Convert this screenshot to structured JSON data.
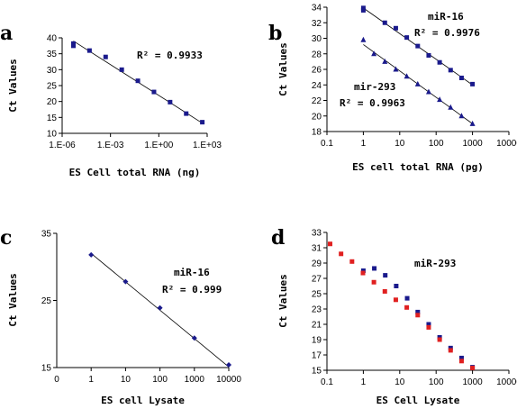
{
  "chart_data": [
    {
      "panel": "a",
      "type": "scatter",
      "xscale": "log",
      "xlim": [
        1e-06,
        1000.0
      ],
      "ylim": [
        10,
        40
      ],
      "xticks": [
        1e-06,
        0.001,
        1,
        1000
      ],
      "xtick_labels": [
        "1.E-06",
        "1.E-03",
        "1.E+00",
        "1.E+03"
      ],
      "yticks": [
        10,
        15,
        20,
        25,
        30,
        35,
        40
      ],
      "ytick_labels": [
        "10",
        "15",
        "20",
        "25",
        "30",
        "35",
        "40"
      ],
      "xlabel": "ES Cell total RNA (ng)",
      "ylabel": "Ct Values",
      "series": [
        {
          "color": "#1a1a8c",
          "marker": "square",
          "x": [
            5e-06,
            5e-06,
            5e-05,
            0.0005,
            0.005,
            0.05,
            0.5,
            5,
            50,
            500
          ],
          "y": [
            37.5,
            38.2,
            36.0,
            34.0,
            30.0,
            26.5,
            23.0,
            19.8,
            16.2,
            13.5
          ]
        }
      ],
      "fit_lines": [
        {
          "x": [
            5e-06,
            500
          ],
          "y": [
            39.0,
            13.2
          ]
        }
      ],
      "annotations": [
        {
          "text": "R² = 0.9933",
          "key": "a_r2"
        }
      ],
      "grid": false
    },
    {
      "panel": "b",
      "type": "scatter",
      "xscale": "log",
      "xlim": [
        0.1,
        10000
      ],
      "ylim": [
        18,
        34
      ],
      "xticks": [
        0.1,
        1,
        10,
        100,
        1000,
        10000
      ],
      "xtick_labels": [
        "0.1",
        "1",
        "10",
        "100",
        "1000",
        "10000"
      ],
      "yticks": [
        18,
        20,
        22,
        24,
        26,
        28,
        30,
        32,
        34
      ],
      "ytick_labels": [
        "18",
        "20",
        "22",
        "24",
        "26",
        "28",
        "30",
        "32",
        "34"
      ],
      "xlabel": "ES cell total RNA (pg)",
      "ylabel": "Ct Values",
      "series": [
        {
          "name": "miR-16",
          "color": "#1a1a8c",
          "marker": "square",
          "x": [
            1,
            1,
            3.9,
            7.8,
            15.6,
            31.25,
            62.5,
            125,
            250,
            500,
            1000
          ],
          "y": [
            33.6,
            33.9,
            32.0,
            31.3,
            30.1,
            29.0,
            27.8,
            26.9,
            25.9,
            24.9,
            24.1
          ]
        },
        {
          "name": "mir-293",
          "color": "#1a1a8c",
          "marker": "triangle",
          "x": [
            1,
            1.95,
            3.9,
            7.8,
            15.6,
            31.25,
            62.5,
            125,
            250,
            500,
            1000
          ],
          "y": [
            29.8,
            28.0,
            27.0,
            26.0,
            25.1,
            24.1,
            23.1,
            22.1,
            21.1,
            20.0,
            19.0
          ]
        }
      ],
      "fit_lines": [
        {
          "x": [
            1,
            1000
          ],
          "y": [
            33.9,
            24.0
          ]
        },
        {
          "x": [
            1,
            1000
          ],
          "y": [
            29.2,
            19.0
          ]
        }
      ],
      "annotations": [
        {
          "text": "miR-16",
          "key": "b_label1"
        },
        {
          "text": "R² = 0.9976",
          "key": "b_r2_1"
        },
        {
          "text": "mir-293",
          "key": "b_label2"
        },
        {
          "text": "R² = 0.9963",
          "key": "b_r2_2"
        }
      ],
      "grid": false
    },
    {
      "panel": "c",
      "type": "scatter",
      "xscale": "log",
      "xlim": [
        0.1,
        10000
      ],
      "ylim": [
        15,
        35
      ],
      "xticks": [
        1,
        10,
        100,
        1000,
        10000
      ],
      "xtick_labels": [
        "1",
        "10",
        "100",
        "1000",
        "10000"
      ],
      "extra_xtick_label": "0",
      "yticks": [
        15,
        25,
        35
      ],
      "ytick_labels": [
        "15",
        "25",
        "35"
      ],
      "xlabel": "ES cell Lysate",
      "ylabel": "Ct Values",
      "series": [
        {
          "color": "#1a1a8c",
          "marker": "diamond",
          "x": [
            1,
            10,
            100,
            1000,
            10000
          ],
          "y": [
            31.8,
            27.8,
            23.9,
            19.4,
            15.4
          ]
        }
      ],
      "fit_lines": [
        {
          "x": [
            1,
            10000
          ],
          "y": [
            32.0,
            15.1
          ]
        }
      ],
      "annotations": [
        {
          "text": "miR-16",
          "key": "c_label"
        },
        {
          "text": "R² = 0.999",
          "key": "c_r2"
        }
      ],
      "grid": false
    },
    {
      "panel": "d",
      "type": "scatter",
      "xscale": "log",
      "xlim": [
        0.1,
        10000
      ],
      "ylim": [
        15,
        33
      ],
      "xticks": [
        0.1,
        1,
        10,
        100,
        1000,
        10000
      ],
      "xtick_labels": [
        "0.1",
        "1",
        "10",
        "100",
        "1000",
        "10000"
      ],
      "yticks": [
        15,
        17,
        19,
        21,
        23,
        25,
        27,
        29,
        31,
        33
      ],
      "ytick_labels": [
        "15",
        "17",
        "19",
        "21",
        "23",
        "25",
        "27",
        "29",
        "31",
        "33"
      ],
      "xlabel": "ES Cell Lysate",
      "ylabel": "Ct Values",
      "series": [
        {
          "color": "#1a1a8c",
          "marker": "square",
          "x": [
            1,
            2,
            4,
            8,
            16,
            31.25,
            62.5,
            125,
            250,
            500,
            1000
          ],
          "y": [
            28.0,
            28.3,
            27.4,
            26.0,
            24.4,
            22.6,
            21.0,
            19.3,
            17.9,
            16.6,
            15.4
          ]
        },
        {
          "color": "#e02020",
          "marker": "square",
          "x": [
            0.122,
            0.244,
            0.488,
            0.977,
            1.95,
            3.9,
            7.8,
            15.6,
            31.25,
            62.5,
            125,
            250,
            500,
            1000
          ],
          "y": [
            31.5,
            30.2,
            29.2,
            27.7,
            26.5,
            25.3,
            24.2,
            23.2,
            22.2,
            20.6,
            19.0,
            17.6,
            16.2,
            15.3
          ]
        }
      ],
      "fit_lines": [],
      "annotations": [
        {
          "text": "miR-293",
          "key": "d_label"
        }
      ],
      "grid": false
    }
  ],
  "panel_letters": {
    "a": "a",
    "b": "b",
    "c": "c",
    "d": "d"
  }
}
